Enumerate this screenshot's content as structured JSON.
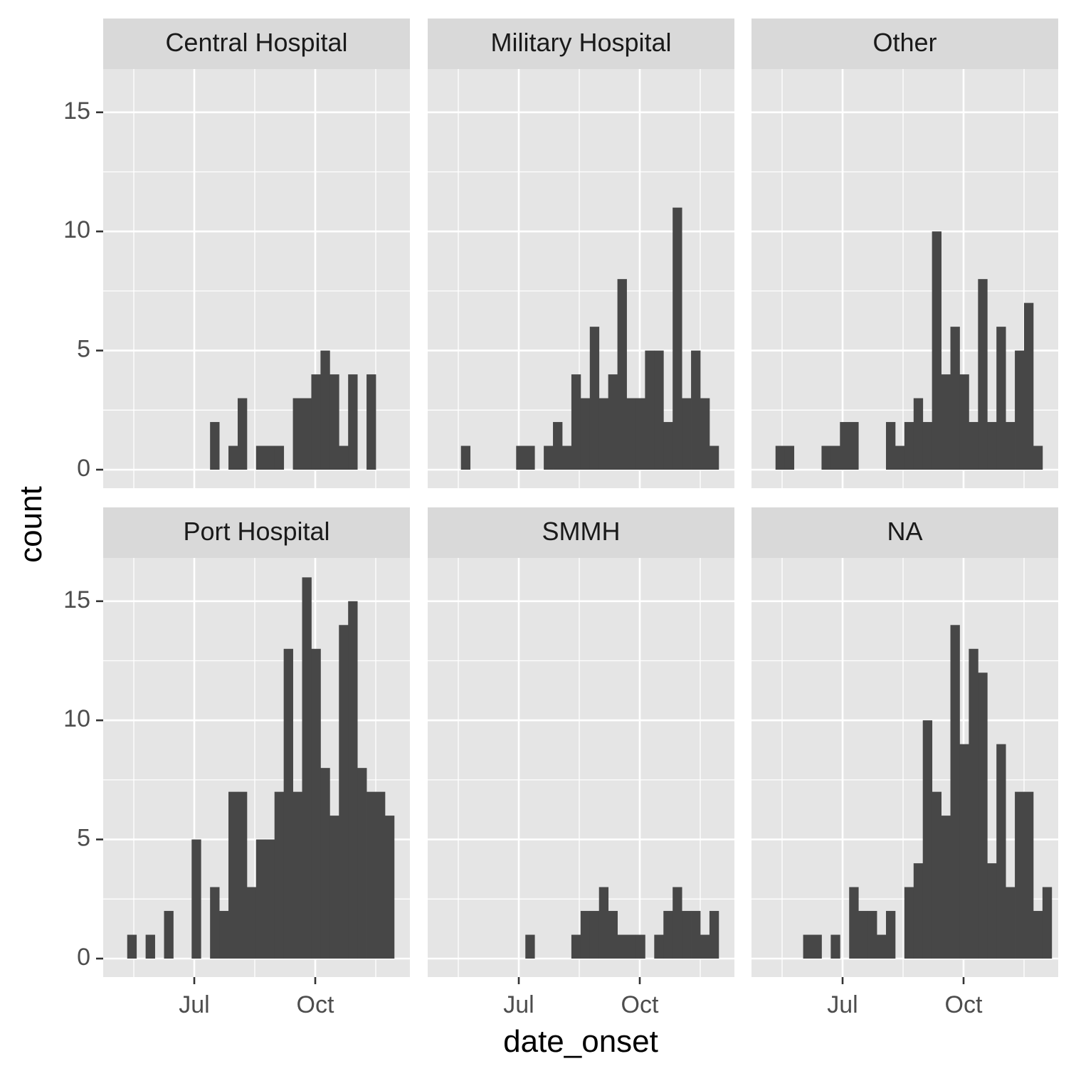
{
  "chart_data": {
    "type": "bar",
    "xlabel": "date_onset",
    "ylabel": "count",
    "ylim": [
      0,
      17
    ],
    "y_ticks": [
      "0",
      "5",
      "10",
      "15"
    ],
    "x_ticks": [
      "Jul",
      "Oct"
    ],
    "x_tick_dates": [
      "2014-07-01",
      "2014-10-01"
    ],
    "bin_width_days": 7,
    "grid": true,
    "bar_color": "#474747",
    "panels": [
      {
        "title": "Central Hospital",
        "bins": [
          {
            "week_start": "2014-07-13",
            "count": 2
          },
          {
            "week_start": "2014-07-27",
            "count": 1
          },
          {
            "week_start": "2014-08-03",
            "count": 3
          },
          {
            "week_start": "2014-08-17",
            "count": 1
          },
          {
            "week_start": "2014-08-24",
            "count": 1
          },
          {
            "week_start": "2014-08-31",
            "count": 1
          },
          {
            "week_start": "2014-09-14",
            "count": 3
          },
          {
            "week_start": "2014-09-21",
            "count": 3
          },
          {
            "week_start": "2014-09-28",
            "count": 4
          },
          {
            "week_start": "2014-10-05",
            "count": 5
          },
          {
            "week_start": "2014-10-12",
            "count": 4
          },
          {
            "week_start": "2014-10-19",
            "count": 1
          },
          {
            "week_start": "2014-10-26",
            "count": 4
          },
          {
            "week_start": "2014-11-09",
            "count": 4
          }
        ]
      },
      {
        "title": "Military Hospital",
        "bins": [
          {
            "week_start": "2014-05-18",
            "count": 1
          },
          {
            "week_start": "2014-06-29",
            "count": 1
          },
          {
            "week_start": "2014-07-06",
            "count": 1
          },
          {
            "week_start": "2014-07-20",
            "count": 1
          },
          {
            "week_start": "2014-07-27",
            "count": 2
          },
          {
            "week_start": "2014-08-03",
            "count": 1
          },
          {
            "week_start": "2014-08-10",
            "count": 4
          },
          {
            "week_start": "2014-08-17",
            "count": 3
          },
          {
            "week_start": "2014-08-24",
            "count": 6
          },
          {
            "week_start": "2014-08-31",
            "count": 3
          },
          {
            "week_start": "2014-09-07",
            "count": 4
          },
          {
            "week_start": "2014-09-14",
            "count": 8
          },
          {
            "week_start": "2014-09-21",
            "count": 3
          },
          {
            "week_start": "2014-09-28",
            "count": 3
          },
          {
            "week_start": "2014-10-05",
            "count": 5
          },
          {
            "week_start": "2014-10-12",
            "count": 5
          },
          {
            "week_start": "2014-10-19",
            "count": 2
          },
          {
            "week_start": "2014-10-26",
            "count": 11
          },
          {
            "week_start": "2014-11-02",
            "count": 3
          },
          {
            "week_start": "2014-11-09",
            "count": 5
          },
          {
            "week_start": "2014-11-16",
            "count": 3
          },
          {
            "week_start": "2014-11-23",
            "count": 1
          }
        ]
      },
      {
        "title": "Other",
        "bins": [
          {
            "week_start": "2014-05-11",
            "count": 1
          },
          {
            "week_start": "2014-05-18",
            "count": 1
          },
          {
            "week_start": "2014-06-15",
            "count": 1
          },
          {
            "week_start": "2014-06-22",
            "count": 1
          },
          {
            "week_start": "2014-06-29",
            "count": 2
          },
          {
            "week_start": "2014-07-06",
            "count": 2
          },
          {
            "week_start": "2014-08-03",
            "count": 2
          },
          {
            "week_start": "2014-08-10",
            "count": 1
          },
          {
            "week_start": "2014-08-17",
            "count": 2
          },
          {
            "week_start": "2014-08-24",
            "count": 3
          },
          {
            "week_start": "2014-08-31",
            "count": 2
          },
          {
            "week_start": "2014-09-07",
            "count": 10
          },
          {
            "week_start": "2014-09-14",
            "count": 4
          },
          {
            "week_start": "2014-09-21",
            "count": 6
          },
          {
            "week_start": "2014-09-28",
            "count": 4
          },
          {
            "week_start": "2014-10-05",
            "count": 2
          },
          {
            "week_start": "2014-10-12",
            "count": 8
          },
          {
            "week_start": "2014-10-19",
            "count": 2
          },
          {
            "week_start": "2014-10-26",
            "count": 6
          },
          {
            "week_start": "2014-11-02",
            "count": 2
          },
          {
            "week_start": "2014-11-09",
            "count": 5
          },
          {
            "week_start": "2014-11-16",
            "count": 7
          },
          {
            "week_start": "2014-11-23",
            "count": 1
          }
        ]
      },
      {
        "title": "Port Hospital",
        "bins": [
          {
            "week_start": "2014-05-11",
            "count": 1
          },
          {
            "week_start": "2014-05-25",
            "count": 1
          },
          {
            "week_start": "2014-06-08",
            "count": 2
          },
          {
            "week_start": "2014-06-29",
            "count": 5
          },
          {
            "week_start": "2014-07-13",
            "count": 3
          },
          {
            "week_start": "2014-07-20",
            "count": 2
          },
          {
            "week_start": "2014-07-27",
            "count": 7
          },
          {
            "week_start": "2014-08-03",
            "count": 7
          },
          {
            "week_start": "2014-08-10",
            "count": 3
          },
          {
            "week_start": "2014-08-17",
            "count": 5
          },
          {
            "week_start": "2014-08-24",
            "count": 5
          },
          {
            "week_start": "2014-08-31",
            "count": 7
          },
          {
            "week_start": "2014-09-07",
            "count": 13
          },
          {
            "week_start": "2014-09-14",
            "count": 7
          },
          {
            "week_start": "2014-09-21",
            "count": 16
          },
          {
            "week_start": "2014-09-28",
            "count": 13
          },
          {
            "week_start": "2014-10-05",
            "count": 8
          },
          {
            "week_start": "2014-10-12",
            "count": 6
          },
          {
            "week_start": "2014-10-19",
            "count": 14
          },
          {
            "week_start": "2014-10-26",
            "count": 15
          },
          {
            "week_start": "2014-11-02",
            "count": 8
          },
          {
            "week_start": "2014-11-09",
            "count": 7
          },
          {
            "week_start": "2014-11-16",
            "count": 7
          },
          {
            "week_start": "2014-11-23",
            "count": 6
          }
        ]
      },
      {
        "title": "SMMH",
        "bins": [
          {
            "week_start": "2014-07-06",
            "count": 1
          },
          {
            "week_start": "2014-08-10",
            "count": 1
          },
          {
            "week_start": "2014-08-17",
            "count": 2
          },
          {
            "week_start": "2014-08-24",
            "count": 2
          },
          {
            "week_start": "2014-08-31",
            "count": 3
          },
          {
            "week_start": "2014-09-07",
            "count": 2
          },
          {
            "week_start": "2014-09-14",
            "count": 1
          },
          {
            "week_start": "2014-09-21",
            "count": 1
          },
          {
            "week_start": "2014-09-28",
            "count": 1
          },
          {
            "week_start": "2014-10-12",
            "count": 1
          },
          {
            "week_start": "2014-10-19",
            "count": 2
          },
          {
            "week_start": "2014-10-26",
            "count": 3
          },
          {
            "week_start": "2014-11-02",
            "count": 2
          },
          {
            "week_start": "2014-11-09",
            "count": 2
          },
          {
            "week_start": "2014-11-16",
            "count": 1
          },
          {
            "week_start": "2014-11-23",
            "count": 2
          }
        ]
      },
      {
        "title": "NA",
        "bins": [
          {
            "week_start": "2014-06-01",
            "count": 1
          },
          {
            "week_start": "2014-06-08",
            "count": 1
          },
          {
            "week_start": "2014-06-22",
            "count": 1
          },
          {
            "week_start": "2014-07-06",
            "count": 3
          },
          {
            "week_start": "2014-07-13",
            "count": 2
          },
          {
            "week_start": "2014-07-20",
            "count": 2
          },
          {
            "week_start": "2014-07-27",
            "count": 1
          },
          {
            "week_start": "2014-08-03",
            "count": 2
          },
          {
            "week_start": "2014-08-17",
            "count": 3
          },
          {
            "week_start": "2014-08-24",
            "count": 4
          },
          {
            "week_start": "2014-08-31",
            "count": 10
          },
          {
            "week_start": "2014-09-07",
            "count": 7
          },
          {
            "week_start": "2014-09-14",
            "count": 6
          },
          {
            "week_start": "2014-09-21",
            "count": 14
          },
          {
            "week_start": "2014-09-28",
            "count": 9
          },
          {
            "week_start": "2014-10-05",
            "count": 13
          },
          {
            "week_start": "2014-10-12",
            "count": 12
          },
          {
            "week_start": "2014-10-19",
            "count": 4
          },
          {
            "week_start": "2014-10-26",
            "count": 9
          },
          {
            "week_start": "2014-11-02",
            "count": 3
          },
          {
            "week_start": "2014-11-09",
            "count": 7
          },
          {
            "week_start": "2014-11-16",
            "count": 7
          },
          {
            "week_start": "2014-11-23",
            "count": 2
          },
          {
            "week_start": "2014-11-30",
            "count": 3
          }
        ]
      }
    ]
  }
}
